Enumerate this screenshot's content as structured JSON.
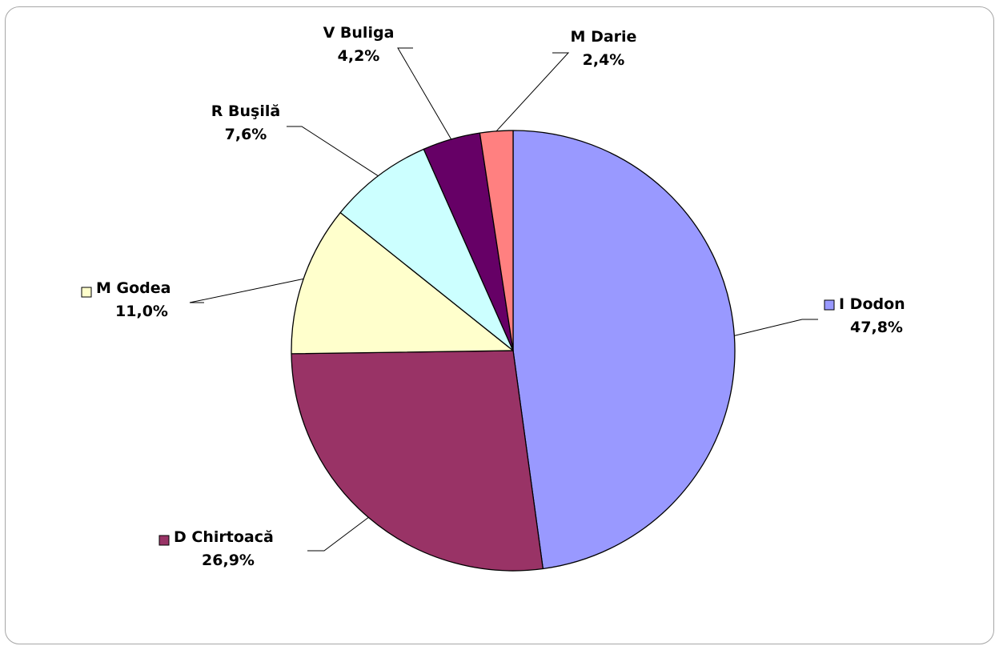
{
  "chart_data": {
    "type": "pie",
    "title": "",
    "categories": [
      "I Dodon",
      "D Chirtoacă",
      "M Godea",
      "R Buşilă",
      "V Buliga",
      "M Darie"
    ],
    "values": [
      47.8,
      26.9,
      11.0,
      7.6,
      4.2,
      2.4
    ],
    "value_labels": [
      "47,8%",
      "26,9%",
      "11,0%",
      "7,6%",
      "4,2%",
      "2,4%"
    ],
    "units": "%",
    "start_angle_deg": 0,
    "direction": "clockwise",
    "legend": "none",
    "grid": false,
    "colors": [
      "#9999ff",
      "#993366",
      "#ffffcc",
      "#ccffff",
      "#660066",
      "#ff8080"
    ],
    "legend_key_slices": [
      "I Dodon",
      "D Chirtoacă",
      "M Godea"
    ]
  }
}
